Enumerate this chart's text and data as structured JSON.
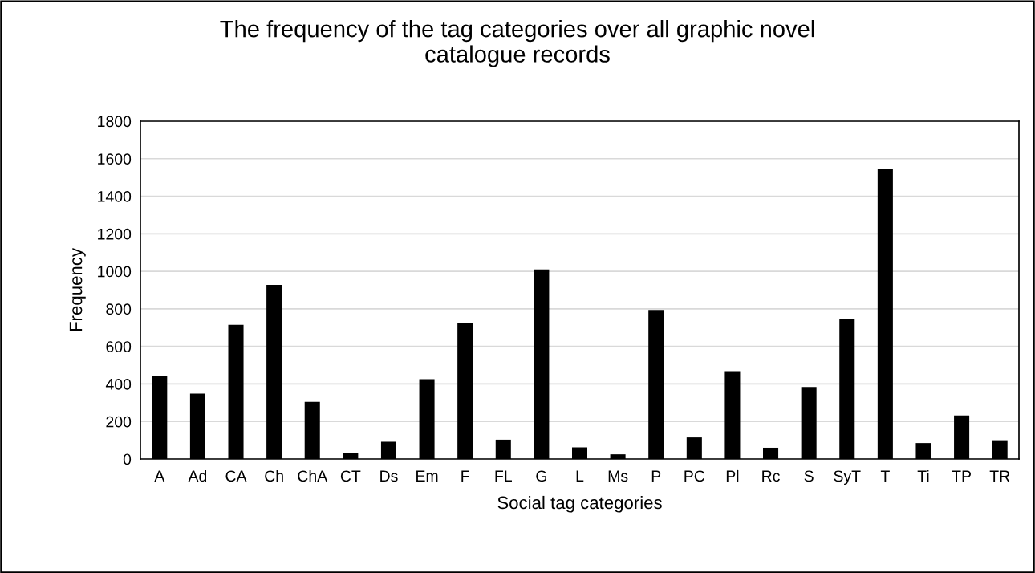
{
  "chart_data": {
    "type": "bar",
    "title": "The frequency of the tag categories over all graphic novel\ncatalogue records",
    "xlabel": "Social tag categories",
    "ylabel": "Frequency",
    "categories": [
      "A",
      "Ad",
      "CA",
      "Ch",
      "ChA",
      "CT",
      "Ds",
      "Em",
      "F",
      "FL",
      "G",
      "L",
      "Ms",
      "P",
      "PC",
      "Pl",
      "Rc",
      "S",
      "SyT",
      "T",
      "Ti",
      "TP",
      "TR"
    ],
    "values": [
      441,
      348,
      715,
      928,
      305,
      32,
      92,
      425,
      723,
      103,
      1010,
      62,
      25,
      794,
      115,
      468,
      60,
      384,
      745,
      1546,
      85,
      232,
      100
    ],
    "color": "#000000",
    "ylim": [
      0,
      1800
    ],
    "yticks": [
      0,
      200,
      400,
      600,
      800,
      1000,
      1200,
      1400,
      1600,
      1800
    ],
    "grid": "y"
  }
}
